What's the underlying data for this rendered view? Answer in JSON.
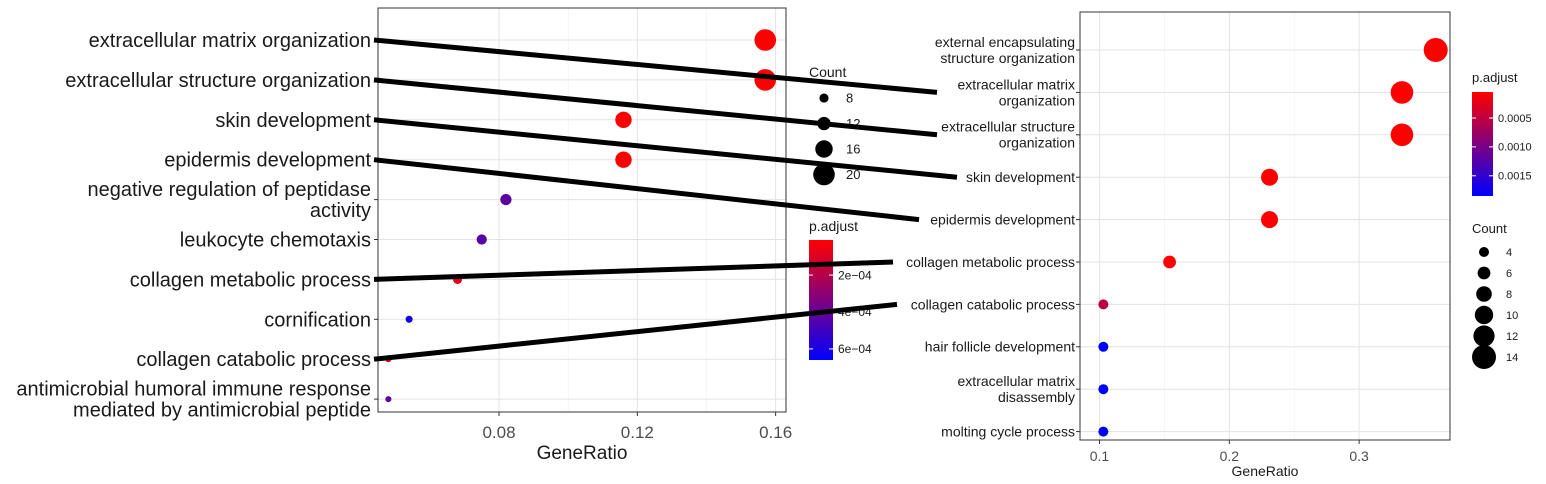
{
  "chart_data": [
    {
      "type": "scatter",
      "subtype": "dotplot",
      "xlabel": "GeneRatio",
      "ylabel": "",
      "xlim": [
        0.045,
        0.163
      ],
      "xticks": [
        "0.08",
        "0.12",
        "0.16"
      ],
      "xtick_values": [
        0.08,
        0.12,
        0.16
      ],
      "grid": true,
      "categories": [
        [
          "extracellular matrix organization"
        ],
        [
          "extracellular structure organization"
        ],
        [
          "skin development"
        ],
        [
          "epidermis development"
        ],
        [
          "negative regulation of peptidase",
          "activity"
        ],
        [
          "leukocyte chemotaxis"
        ],
        [
          "collagen metabolic process"
        ],
        [
          "cornification"
        ],
        [
          "collagen catabolic process"
        ],
        [
          "antimicrobial humoral immune response",
          "mediated by antimicrobial peptide"
        ]
      ],
      "x": [
        0.157,
        0.157,
        0.116,
        0.116,
        0.082,
        0.075,
        0.068,
        0.054,
        0.048,
        0.048
      ],
      "count": [
        20,
        20,
        15,
        15,
        10,
        9,
        8,
        6,
        5,
        5
      ],
      "p_adjust": [
        1e-05,
        1e-05,
        2e-05,
        2e-05,
        0.00042,
        0.00044,
        8e-05,
        0.00062,
        8e-05,
        0.00042
      ],
      "legend_size": {
        "title": "Count",
        "labels": [
          "8",
          "12",
          "16",
          "20"
        ],
        "values": [
          8,
          12,
          16,
          20
        ]
      },
      "legend_color": {
        "title": "p.adjust",
        "labels": [
          "2e−04",
          "4e−04",
          "6e−04"
        ],
        "values": [
          0.0002,
          0.0004,
          0.0006
        ],
        "range": [
          1e-05,
          0.00066
        ],
        "low_color": "#ff0000",
        "high_color": "#0000ff"
      }
    },
    {
      "type": "scatter",
      "subtype": "dotplot",
      "xlabel": "GeneRatio",
      "ylabel": "",
      "xlim": [
        0.085,
        0.37
      ],
      "xticks": [
        "0.1",
        "0.2",
        "0.3"
      ],
      "xtick_values": [
        0.1,
        0.2,
        0.3
      ],
      "grid": true,
      "categories": [
        [
          "external encapsulating",
          "structure organization"
        ],
        [
          "extracellular matrix",
          "organization"
        ],
        [
          "extracellular structure",
          "organization"
        ],
        [
          "skin development"
        ],
        [
          "epidermis development"
        ],
        [
          "collagen metabolic process"
        ],
        [
          "collagen catabolic process"
        ],
        [
          "hair follicle development"
        ],
        [
          "extracellular matrix",
          "disassembly"
        ],
        [
          "molting cycle process"
        ]
      ],
      "x": [
        0.359,
        0.333,
        0.333,
        0.231,
        0.231,
        0.154,
        0.103,
        0.103,
        0.103,
        0.103
      ],
      "count": [
        14,
        13,
        13,
        9,
        9,
        6,
        4,
        4,
        4,
        4
      ],
      "p_adjust": [
        5e-05,
        5e-05,
        5e-05,
        6e-05,
        6e-05,
        7e-05,
        0.0005,
        0.00185,
        0.00185,
        0.00185
      ],
      "legend_color": {
        "title": "p.adjust",
        "labels": [
          "0.0005",
          "0.0010",
          "0.0015"
        ],
        "values": [
          0.0005,
          0.001,
          0.0015
        ],
        "range": [
          5e-05,
          0.00185
        ],
        "low_color": "#ff0000",
        "high_color": "#0000ff"
      },
      "legend_size": {
        "title": "Count",
        "labels": [
          "4",
          "6",
          "8",
          "10",
          "12",
          "14"
        ],
        "values": [
          4,
          6,
          8,
          10,
          12,
          14
        ]
      }
    }
  ],
  "connectors": [
    {
      "from_term": 0,
      "to_term": 1
    },
    {
      "from_term": 1,
      "to_term": 2
    },
    {
      "from_term": 2,
      "to_term": 3
    },
    {
      "from_term": 3,
      "to_term": 4
    },
    {
      "from_term": 6,
      "to_term": 5
    },
    {
      "from_term": 8,
      "to_term": 6
    }
  ]
}
